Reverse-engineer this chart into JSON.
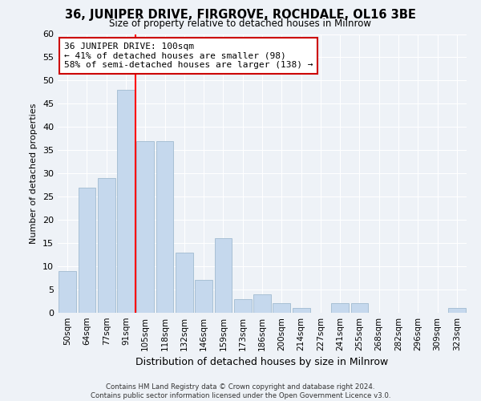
{
  "title": "36, JUNIPER DRIVE, FIRGROVE, ROCHDALE, OL16 3BE",
  "subtitle": "Size of property relative to detached houses in Milnrow",
  "xlabel": "Distribution of detached houses by size in Milnrow",
  "ylabel": "Number of detached properties",
  "bar_labels": [
    "50sqm",
    "64sqm",
    "77sqm",
    "91sqm",
    "105sqm",
    "118sqm",
    "132sqm",
    "146sqm",
    "159sqm",
    "173sqm",
    "186sqm",
    "200sqm",
    "214sqm",
    "227sqm",
    "241sqm",
    "255sqm",
    "268sqm",
    "282sqm",
    "296sqm",
    "309sqm",
    "323sqm"
  ],
  "bar_values": [
    9,
    27,
    29,
    48,
    37,
    37,
    13,
    7,
    16,
    3,
    4,
    2,
    1,
    0,
    2,
    2,
    0,
    0,
    0,
    0,
    1
  ],
  "bar_color": "#c5d8ed",
  "bar_edge_color": "#a0bbd0",
  "red_line_x": 3.5,
  "ylim": [
    0,
    60
  ],
  "yticks": [
    0,
    5,
    10,
    15,
    20,
    25,
    30,
    35,
    40,
    45,
    50,
    55,
    60
  ],
  "annotation_text": "36 JUNIPER DRIVE: 100sqm\n← 41% of detached houses are smaller (98)\n58% of semi-detached houses are larger (138) →",
  "annotation_box_facecolor": "#ffffff",
  "annotation_box_edgecolor": "#cc0000",
  "bg_color": "#eef2f7",
  "grid_color": "#ffffff",
  "footer_line1": "Contains HM Land Registry data © Crown copyright and database right 2024.",
  "footer_line2": "Contains public sector information licensed under the Open Government Licence v3.0."
}
